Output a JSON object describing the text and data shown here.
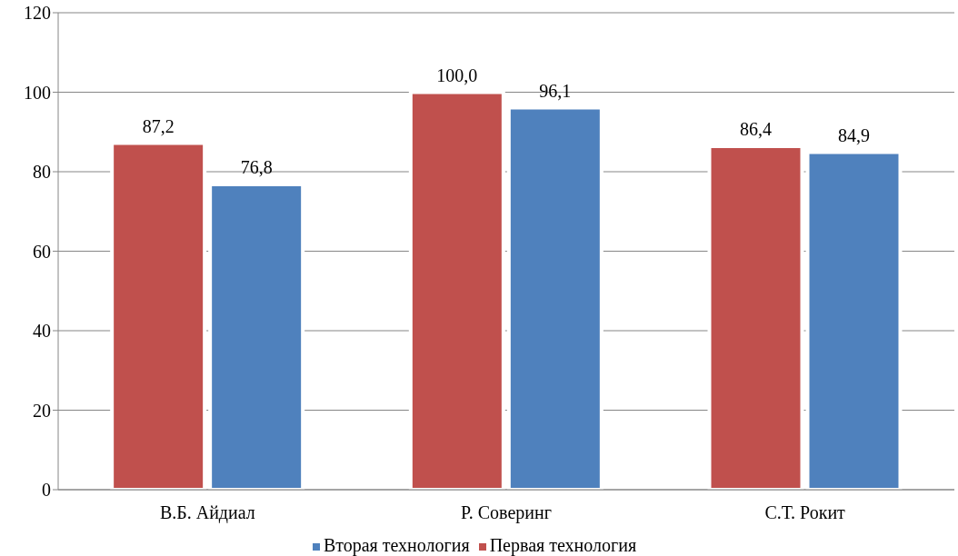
{
  "chart_data": {
    "type": "bar",
    "categories": [
      "В.Б. Айдиал",
      "Р. Соверинг",
      "С.Т. Рокит"
    ],
    "series": [
      {
        "name": "Первая технология",
        "color": "#c0504d",
        "values": [
          87.2,
          100.0,
          86.4
        ],
        "value_labels": [
          "87,2",
          "100,0",
          "86,4"
        ]
      },
      {
        "name": "Вторая технология",
        "color": "#4f81bd",
        "values": [
          76.8,
          96.1,
          84.9
        ],
        "value_labels": [
          "76,8",
          "96,1",
          "84,9"
        ]
      }
    ],
    "ylim": [
      0,
      120
    ],
    "yticks": [
      0,
      20,
      40,
      60,
      80,
      100,
      120
    ],
    "grid": "y",
    "legend": "bottom"
  }
}
